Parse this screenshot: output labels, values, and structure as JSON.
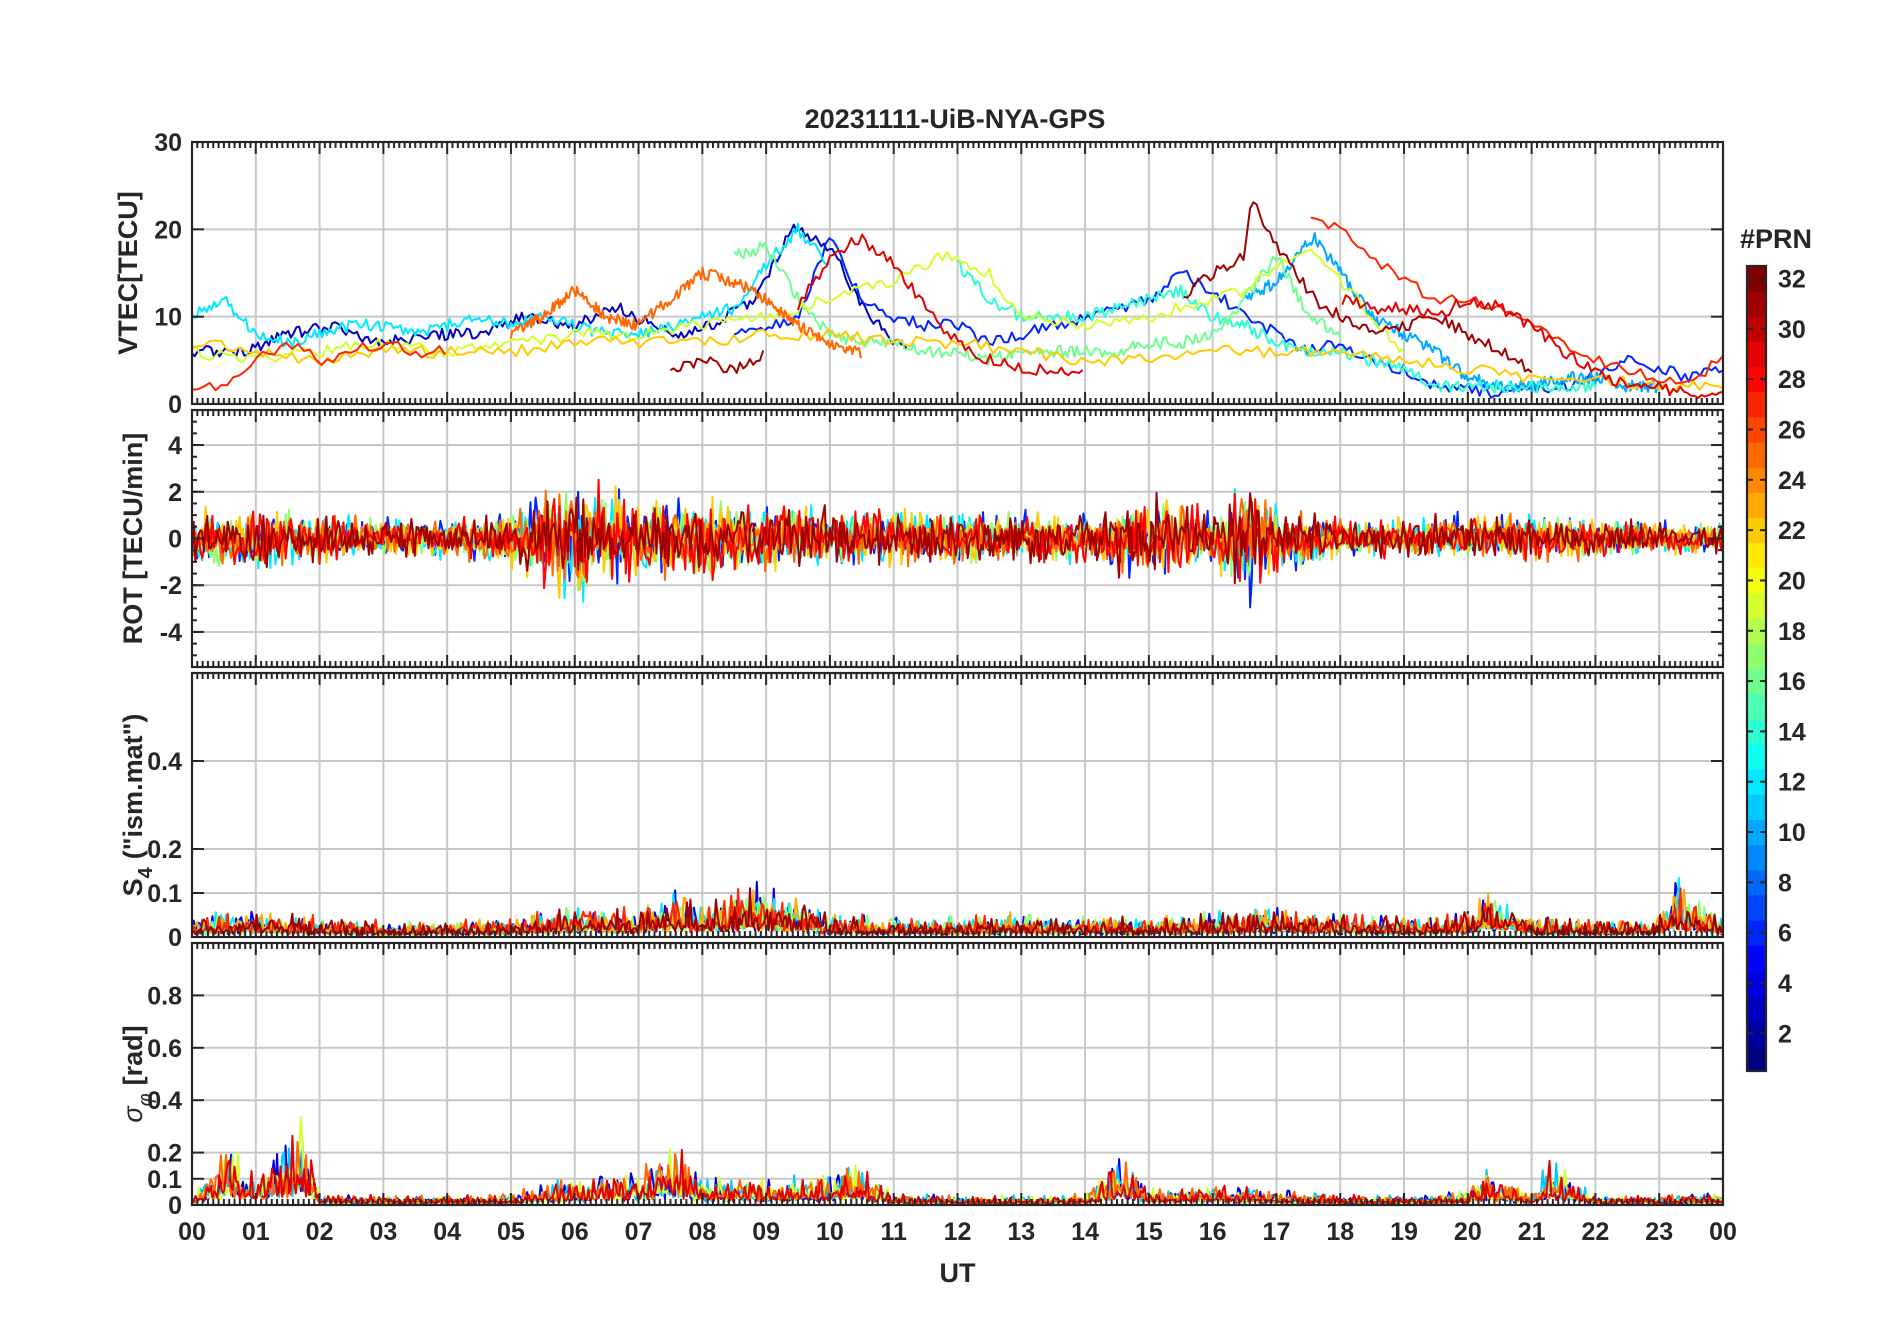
{
  "chart_data": [
    {
      "type": "line",
      "panel": "vtec",
      "title": "20231111-UiB-NYA-GPS",
      "ylabel": "VTEC[TECU]",
      "ylim": [
        0,
        30
      ],
      "yticks": [
        0,
        10,
        20,
        30
      ],
      "xlim": [
        0,
        24
      ],
      "series": [
        {
          "name": "PRN 3",
          "prn": 3,
          "x": [
            0.0,
            0.8,
            1.5,
            2.2,
            3.0,
            3.8,
            4.5,
            5.2,
            6.0,
            6.7,
            7.5,
            8.2,
            8.8,
            9.4,
            10.0,
            10.6,
            11.2
          ],
          "values": [
            6,
            6,
            8,
            9,
            7,
            8,
            8,
            10,
            9,
            11,
            8,
            9,
            12,
            20,
            18,
            10,
            6
          ]
        },
        {
          "name": "PRN 6",
          "prn": 6,
          "x": [
            8.5,
            9.0,
            9.5,
            10.0,
            10.5,
            11.0,
            11.5,
            12.0,
            12.5,
            13.0,
            13.5,
            14.0,
            14.5,
            15.0,
            15.5,
            16.0,
            16.5,
            17.0,
            17.5,
            18.0,
            18.5,
            19.0,
            19.5,
            20.0,
            20.5,
            21.0,
            21.5,
            22.0,
            22.5,
            23.0,
            23.5,
            24.0
          ],
          "values": [
            8,
            9,
            10,
            19,
            12,
            10,
            9,
            9,
            7,
            8,
            9,
            10,
            11,
            12,
            15,
            13,
            10,
            8,
            6,
            7,
            5,
            4,
            2,
            2,
            1,
            2,
            2,
            3,
            5,
            4,
            3,
            4
          ]
        },
        {
          "name": "PRN 10",
          "prn": 10,
          "x": [
            16.5,
            17.0,
            17.3,
            17.6,
            18.0,
            18.5,
            19.0,
            19.5,
            20.0,
            20.5,
            21.0,
            21.5,
            22.0,
            22.5,
            23.0
          ],
          "values": [
            12,
            14,
            17,
            19,
            15,
            10,
            8,
            6,
            3,
            2,
            2,
            3,
            3,
            2,
            2
          ]
        },
        {
          "name": "PRN 12",
          "prn": 12,
          "x": [
            0.0,
            0.5,
            1.0,
            1.5,
            2.0,
            2.5,
            3.0,
            3.5,
            4.0,
            4.5,
            5.0,
            5.5,
            6.0,
            6.5,
            7.0,
            7.5,
            8.0,
            8.5,
            9.0,
            9.5,
            10.0
          ],
          "values": [
            10,
            12,
            8,
            7,
            8,
            9,
            9,
            8,
            9,
            10,
            9,
            10,
            9,
            8,
            8,
            9,
            10,
            11,
            16,
            20,
            16
          ]
        },
        {
          "name": "PRN 14",
          "prn": 14,
          "x": [
            12.0,
            12.5,
            13.0,
            13.5,
            14.0,
            14.5,
            15.0,
            15.5,
            16.0,
            16.5,
            17.0,
            17.5,
            18.0,
            18.5,
            19.0,
            19.5,
            20.0,
            20.5,
            21.0,
            21.5,
            22.0
          ],
          "values": [
            16,
            12,
            10,
            10,
            10,
            11,
            12,
            13,
            10,
            9,
            7,
            6,
            6,
            5,
            4,
            2,
            2,
            2,
            2,
            2,
            2
          ]
        },
        {
          "name": "PRN 16",
          "prn": 16,
          "x": [
            8.5,
            9.0,
            9.5,
            10.0,
            10.5,
            11.0,
            11.5,
            12.0,
            12.5,
            13.0,
            13.5,
            14.0,
            14.5,
            15.0,
            15.5,
            16.0,
            16.5,
            17.0,
            17.5,
            18.0
          ],
          "values": [
            17,
            18,
            12,
            8,
            7,
            7,
            6,
            6,
            5,
            6,
            6,
            6,
            6,
            7,
            7,
            8,
            12,
            17,
            10,
            8
          ]
        },
        {
          "name": "PRN 19",
          "prn": 19,
          "x": [
            0.0,
            1.0,
            2.0,
            3.0,
            4.0,
            5.0,
            6.0,
            7.0,
            8.0,
            9.0,
            10.0,
            11.0,
            11.8,
            12.5,
            13.0,
            14.0,
            15.0,
            16.0,
            16.5,
            17.0,
            17.5,
            18.0,
            18.5,
            19.0
          ],
          "values": [
            6,
            5,
            6,
            7,
            6,
            7,
            8,
            8,
            9,
            10,
            12,
            14,
            17,
            15,
            10,
            9,
            10,
            12,
            13,
            16,
            18,
            14,
            10,
            6
          ]
        },
        {
          "name": "PRN 22",
          "prn": 22,
          "x": [
            0.0,
            1.0,
            2.0,
            3.0,
            4.0,
            5.0,
            6.0,
            7.0,
            8.0,
            9.0,
            10.0,
            11.0,
            12.0,
            13.0,
            14.0,
            15.0,
            16.0,
            17.0,
            18.0,
            19.0,
            20.0,
            21.0,
            22.0,
            23.0,
            24.0
          ],
          "values": [
            7,
            6,
            5,
            6,
            6,
            6,
            7,
            7,
            7,
            8,
            8,
            7,
            7,
            6,
            5,
            5,
            6,
            6,
            6,
            5,
            4,
            3,
            3,
            2,
            2
          ]
        },
        {
          "name": "PRN 25",
          "prn": 25,
          "x": [
            5.0,
            5.5,
            6.0,
            6.5,
            7.0,
            7.5,
            8.0,
            8.5,
            9.0,
            9.5,
            10.0,
            10.5
          ],
          "values": [
            8,
            10,
            13,
            10,
            9,
            12,
            15,
            14,
            12,
            9,
            7,
            6
          ]
        },
        {
          "name": "PRN 27",
          "prn": 27,
          "x": [
            0.0,
            0.5,
            1.0,
            1.5,
            2.0,
            2.5,
            3.0,
            3.5,
            4.0,
            17.5,
            18.0,
            18.5,
            19.0,
            19.5,
            20.0,
            20.5,
            21.0,
            21.5,
            22.0,
            22.5,
            23.0,
            23.5,
            24.0
          ],
          "values": [
            2,
            2,
            5,
            7,
            5,
            6,
            7,
            6,
            6,
            21,
            20,
            17,
            14,
            12,
            12,
            11,
            9,
            7,
            5,
            4,
            3,
            3,
            5
          ]
        },
        {
          "name": "PRN 29",
          "prn": 29,
          "x": [
            9.5,
            10.0,
            10.5,
            11.0,
            11.5,
            12.0,
            12.5,
            13.0,
            13.5,
            14.0,
            18.0,
            18.5,
            19.0,
            19.5,
            20.0,
            20.5,
            21.0,
            21.5,
            22.0,
            22.5,
            23.0,
            23.5,
            24.0
          ],
          "values": [
            11,
            17,
            19,
            16,
            11,
            7,
            5,
            4,
            4,
            4,
            12,
            11,
            11,
            10,
            12,
            11,
            9,
            6,
            4,
            2,
            2,
            1,
            1
          ]
        },
        {
          "name": "PRN 31",
          "prn": 31,
          "x": [
            7.5,
            8.0,
            8.5,
            9.0,
            15.5,
            16.0,
            16.5,
            16.6,
            16.8,
            17.0,
            17.3,
            17.6,
            18.0,
            18.5,
            19.0,
            19.5,
            20.0,
            20.5,
            21.0
          ],
          "values": [
            4,
            5,
            4,
            6,
            12,
            15,
            17,
            24,
            20,
            18,
            15,
            12,
            10,
            8,
            9,
            10,
            8,
            6,
            4
          ]
        }
      ]
    },
    {
      "type": "line",
      "panel": "rot",
      "ylabel": "ROT [TECU/min]",
      "ylim": [
        -5.5,
        5.5
      ],
      "yticks": [
        -4,
        -2,
        0,
        2,
        4
      ],
      "xlim": [
        0,
        24
      ],
      "note": "noisy traces, amplitude envelope in TECU/min",
      "envelope": {
        "x": [
          0,
          1,
          2,
          3,
          4,
          5,
          5.9,
          7,
          8,
          9,
          10,
          11,
          12,
          13,
          14,
          14.8,
          16,
          16.6,
          17,
          18,
          19,
          20,
          21,
          22,
          23,
          24
        ],
        "amplitude": [
          1.5,
          1.6,
          1.2,
          1.0,
          1.0,
          1.4,
          3.5,
          1.8,
          2.0,
          1.6,
          1.5,
          1.4,
          1.3,
          1.4,
          1.2,
          2.2,
          1.5,
          3.2,
          1.6,
          1.0,
          1.0,
          1.2,
          1.2,
          1.0,
          0.9,
          0.8
        ]
      },
      "series": [
        {
          "name": "PRN 6",
          "prn": 6,
          "seed": 11
        },
        {
          "name": "PRN 12",
          "prn": 12,
          "seed": 23
        },
        {
          "name": "PRN 17",
          "prn": 17,
          "seed": 37
        },
        {
          "name": "PRN 22",
          "prn": 22,
          "seed": 41
        },
        {
          "name": "PRN 25",
          "prn": 25,
          "seed": 53
        },
        {
          "name": "PRN 28",
          "prn": 28,
          "seed": 67
        },
        {
          "name": "PRN 31",
          "prn": 31,
          "seed": 79
        }
      ]
    },
    {
      "type": "line",
      "panel": "s4",
      "ylabel": "S4 (\"ism.mat\")",
      "ylabel_main": "S",
      "ylabel_sub": "4",
      "ylabel_rest": "(\"ism.mat\")",
      "ylim": [
        0,
        0.6
      ],
      "yticks": [
        0,
        0.1,
        0.2,
        0.4
      ],
      "ytick_labels": [
        "0",
        "0.1",
        "0.2",
        "0.4"
      ],
      "xlim": [
        0,
        24
      ],
      "envelope": {
        "x": [
          0,
          1,
          2,
          3,
          4,
          5,
          6,
          7,
          7.6,
          8,
          8.9,
          10,
          11,
          12,
          13,
          14,
          15,
          16,
          17,
          18,
          19,
          20,
          20.3,
          21,
          22,
          23,
          23.3,
          24
        ],
        "amplitude": [
          0.06,
          0.07,
          0.05,
          0.04,
          0.04,
          0.05,
          0.08,
          0.07,
          0.12,
          0.08,
          0.14,
          0.06,
          0.05,
          0.05,
          0.06,
          0.05,
          0.05,
          0.06,
          0.08,
          0.06,
          0.05,
          0.06,
          0.12,
          0.05,
          0.04,
          0.05,
          0.15,
          0.05
        ]
      },
      "series": [
        {
          "name": "PRN 4",
          "prn": 4,
          "seed": 101
        },
        {
          "name": "PRN 12",
          "prn": 12,
          "seed": 113
        },
        {
          "name": "PRN 17",
          "prn": 17,
          "seed": 127
        },
        {
          "name": "PRN 23",
          "prn": 23,
          "seed": 131
        },
        {
          "name": "PRN 27",
          "prn": 27,
          "seed": 149
        },
        {
          "name": "PRN 31",
          "prn": 31,
          "seed": 157
        }
      ]
    },
    {
      "type": "line",
      "panel": "sigma_phi",
      "ylabel": "σφ[rad]",
      "ylabel_main": "σ",
      "ylabel_sub": "φ",
      "ylabel_rest": "[rad]",
      "ylim": [
        0,
        1.0
      ],
      "yticks": [
        0,
        0.1,
        0.2,
        0.4,
        0.6,
        0.8
      ],
      "ytick_labels": [
        "0",
        "0.1",
        "0.2",
        "0.4",
        "0.6",
        "0.8"
      ],
      "xlim": [
        0,
        24
      ],
      "xlabel": "UT",
      "xtick_labels": [
        "00",
        "01",
        "02",
        "03",
        "04",
        "05",
        "06",
        "07",
        "08",
        "09",
        "10",
        "11",
        "12",
        "13",
        "14",
        "15",
        "16",
        "17",
        "18",
        "19",
        "20",
        "21",
        "22",
        "23",
        "00"
      ],
      "envelope": {
        "x": [
          0,
          0.6,
          1,
          1.7,
          2,
          3,
          4,
          5,
          6,
          7,
          7.6,
          8,
          9,
          10,
          10.3,
          11,
          12,
          13,
          14,
          14.6,
          15,
          16,
          17,
          18,
          19,
          20,
          20.3,
          21,
          21.3,
          22,
          23,
          24
        ],
        "amplitude": [
          0.05,
          0.25,
          0.12,
          0.35,
          0.05,
          0.04,
          0.04,
          0.05,
          0.12,
          0.15,
          0.25,
          0.12,
          0.12,
          0.12,
          0.18,
          0.05,
          0.04,
          0.04,
          0.05,
          0.22,
          0.08,
          0.08,
          0.06,
          0.04,
          0.04,
          0.06,
          0.15,
          0.05,
          0.2,
          0.04,
          0.04,
          0.05
        ]
      },
      "series": [
        {
          "name": "PRN 4",
          "prn": 4,
          "seed": 211
        },
        {
          "name": "PRN 11",
          "prn": 11,
          "seed": 223
        },
        {
          "name": "PRN 19",
          "prn": 19,
          "seed": 227
        },
        {
          "name": "PRN 25",
          "prn": 25,
          "seed": 229
        },
        {
          "name": "PRN 29",
          "prn": 29,
          "seed": 233
        }
      ]
    }
  ],
  "colorbar": {
    "title": "#PRN",
    "range": [
      1,
      32
    ],
    "tick_labels": [
      "2",
      "4",
      "6",
      "8",
      "10",
      "12",
      "14",
      "16",
      "18",
      "20",
      "22",
      "24",
      "26",
      "28",
      "30",
      "32"
    ],
    "tick_values": [
      2,
      4,
      6,
      8,
      10,
      12,
      14,
      16,
      18,
      20,
      22,
      24,
      26,
      28,
      30,
      32
    ],
    "colormap": "jet"
  }
}
